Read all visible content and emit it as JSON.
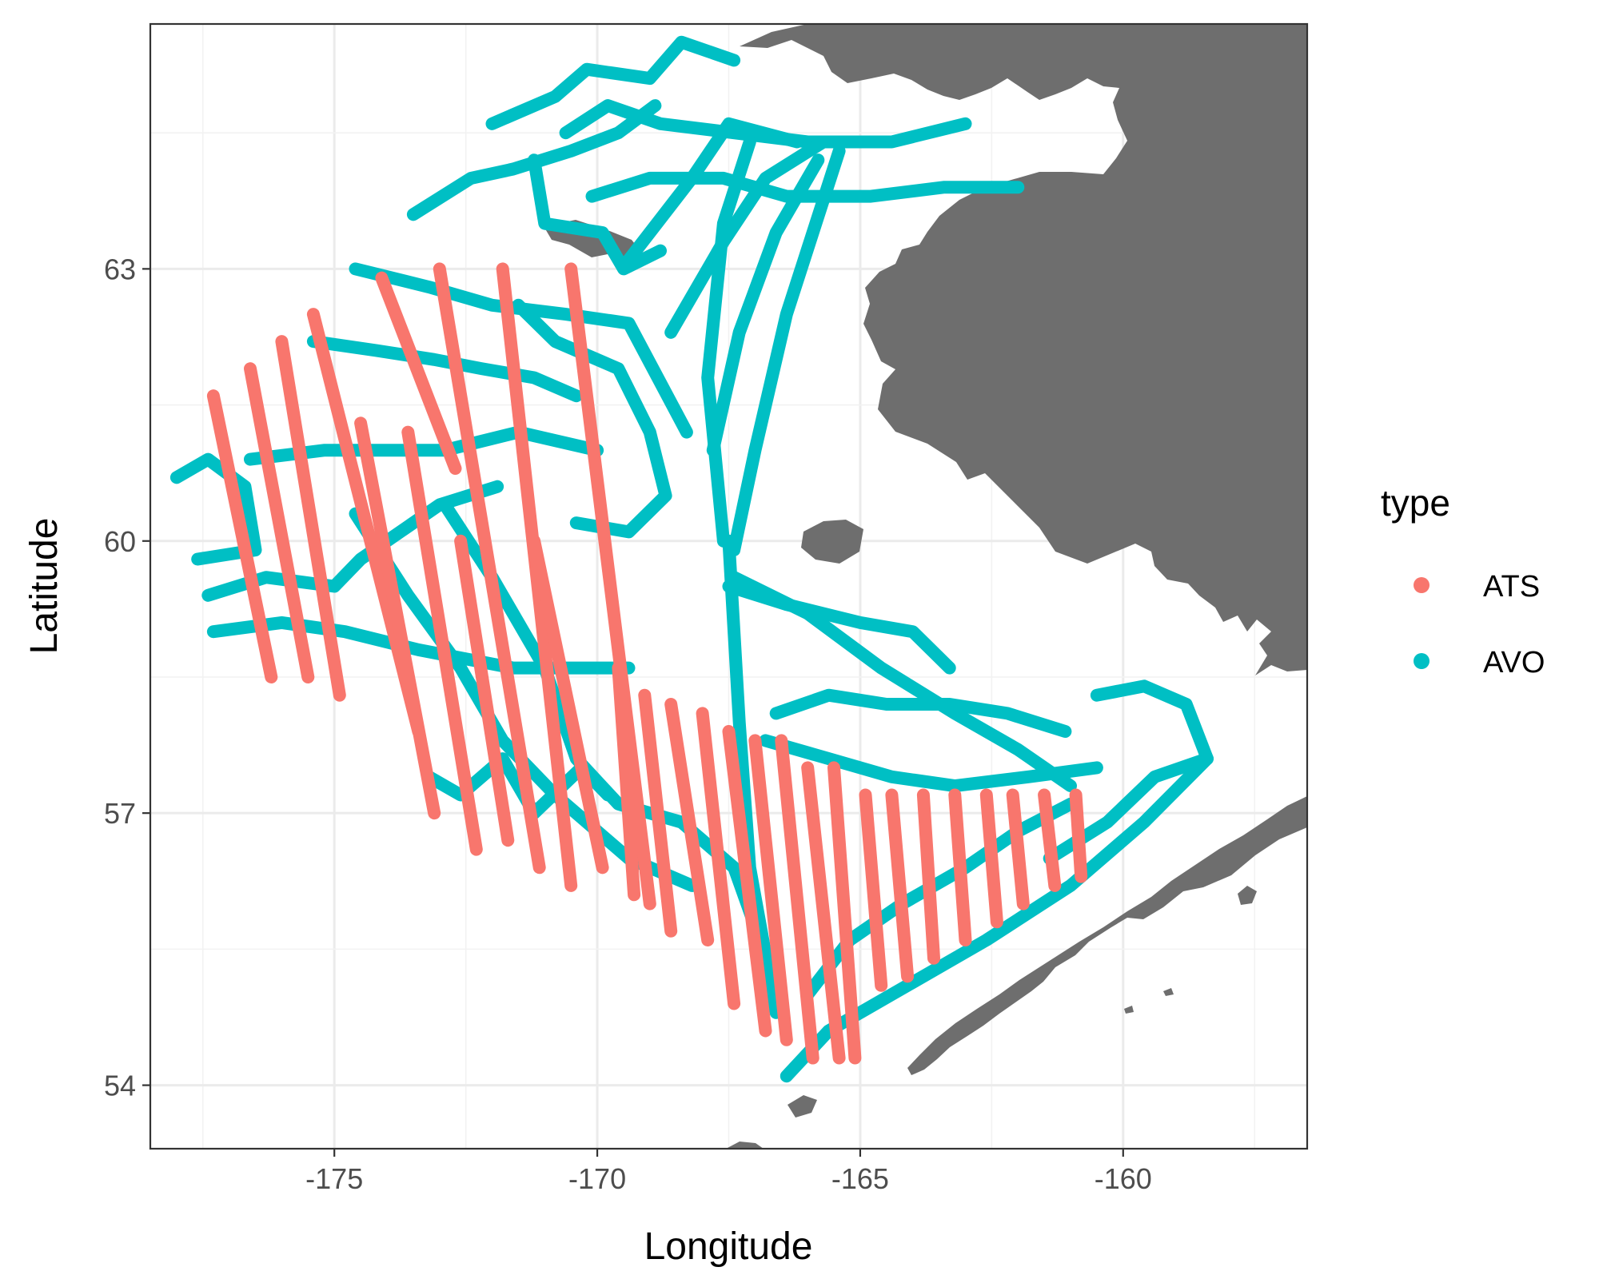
{
  "chart_data": {
    "type": "map",
    "title": "",
    "xlabel": "Longitude",
    "ylabel": "Latitude",
    "xlim": [
      -178.5,
      -156.5
    ],
    "ylim": [
      53.3,
      65.7
    ],
    "xticks": [
      -175,
      -170,
      -165,
      -160
    ],
    "yticks": [
      54,
      57,
      60,
      63
    ],
    "xtick_labels": [
      "-175",
      "-170",
      "-165",
      "-160"
    ],
    "ytick_labels": [
      "54",
      "57",
      "60",
      "63"
    ],
    "grid": true,
    "legend": {
      "title": "type",
      "position": "right",
      "entries": [
        {
          "label": "ATS",
          "color": "#F8766D"
        },
        {
          "label": "AVO",
          "color": "#00BFC4"
        }
      ]
    },
    "land_color": "#6e6e6e",
    "series": [
      {
        "name": "ATS",
        "color": "#F8766D",
        "transects": [
          [
            [
              -177.3,
              61.6
            ],
            [
              -176.2,
              58.5
            ]
          ],
          [
            [
              -176.6,
              61.9
            ],
            [
              -175.5,
              58.5
            ]
          ],
          [
            [
              -176.0,
              62.2
            ],
            [
              -174.9,
              58.3
            ]
          ],
          [
            [
              -175.4,
              62.5
            ],
            [
              -173.4,
              57.9
            ]
          ],
          [
            [
              -174.5,
              61.3
            ],
            [
              -173.1,
              57.0
            ]
          ],
          [
            [
              -174.1,
              62.9
            ],
            [
              -172.7,
              60.8
            ]
          ],
          [
            [
              -173.6,
              61.2
            ],
            [
              -172.3,
              56.6
            ]
          ],
          [
            [
              -173.0,
              63.0
            ],
            [
              -171.1,
              56.4
            ]
          ],
          [
            [
              -172.6,
              60.0
            ],
            [
              -171.7,
              56.7
            ]
          ],
          [
            [
              -171.8,
              63.0
            ],
            [
              -170.5,
              56.2
            ]
          ],
          [
            [
              -171.2,
              60.0
            ],
            [
              -169.9,
              56.4
            ]
          ],
          [
            [
              -170.5,
              63.0
            ],
            [
              -169.0,
              56.0
            ]
          ],
          [
            [
              -169.6,
              58.6
            ],
            [
              -169.3,
              56.1
            ]
          ],
          [
            [
              -169.1,
              58.3
            ],
            [
              -168.6,
              55.7
            ]
          ],
          [
            [
              -168.6,
              58.2
            ],
            [
              -167.9,
              55.6
            ]
          ],
          [
            [
              -168.0,
              58.1
            ],
            [
              -167.4,
              54.9
            ]
          ],
          [
            [
              -167.5,
              57.9
            ],
            [
              -166.8,
              54.6
            ]
          ],
          [
            [
              -167.0,
              57.8
            ],
            [
              -166.4,
              54.5
            ]
          ],
          [
            [
              -166.5,
              57.8
            ],
            [
              -165.9,
              54.3
            ]
          ],
          [
            [
              -166.0,
              57.5
            ],
            [
              -165.4,
              54.3
            ]
          ],
          [
            [
              -165.5,
              57.5
            ],
            [
              -165.1,
              54.3
            ]
          ],
          [
            [
              -164.9,
              57.2
            ],
            [
              -164.6,
              55.1
            ]
          ],
          [
            [
              -164.4,
              57.2
            ],
            [
              -164.1,
              55.2
            ]
          ],
          [
            [
              -163.8,
              57.2
            ],
            [
              -163.6,
              55.4
            ]
          ],
          [
            [
              -163.2,
              57.2
            ],
            [
              -163.0,
              55.6
            ]
          ],
          [
            [
              -162.6,
              57.2
            ],
            [
              -162.4,
              55.8
            ]
          ],
          [
            [
              -162.1,
              57.2
            ],
            [
              -161.9,
              56.0
            ]
          ],
          [
            [
              -161.5,
              57.2
            ],
            [
              -161.3,
              56.2
            ]
          ],
          [
            [
              -160.9,
              57.2
            ],
            [
              -160.8,
              56.3
            ]
          ]
        ]
      },
      {
        "name": "AVO",
        "color": "#00BFC4",
        "transects": [
          [
            [
              -178.0,
              60.7
            ],
            [
              -177.4,
              60.9
            ],
            [
              -176.7,
              60.6
            ],
            [
              -176.5,
              59.9
            ],
            [
              -177.6,
              59.8
            ]
          ],
          [
            [
              -177.3,
              59.0
            ],
            [
              -176.0,
              59.1
            ],
            [
              -174.8,
              59.0
            ],
            [
              -173.4,
              58.8
            ],
            [
              -171.6,
              58.6
            ],
            [
              -169.4,
              58.6
            ]
          ],
          [
            [
              -177.4,
              59.4
            ],
            [
              -176.3,
              59.6
            ],
            [
              -175.0,
              59.5
            ],
            [
              -174.5,
              59.8
            ],
            [
              -173.0,
              60.4
            ],
            [
              -171.9,
              60.6
            ]
          ],
          [
            [
              -176.6,
              60.9
            ],
            [
              -175.2,
              61.0
            ],
            [
              -173.8,
              61.0
            ],
            [
              -172.9,
              61.0
            ],
            [
              -171.5,
              61.2
            ],
            [
              -170.0,
              61.0
            ]
          ],
          [
            [
              -175.4,
              62.2
            ],
            [
              -174.2,
              62.1
            ],
            [
              -173.1,
              62.0
            ],
            [
              -172.2,
              61.9
            ],
            [
              -171.2,
              61.8
            ],
            [
              -170.4,
              61.6
            ]
          ],
          [
            [
              -174.6,
              63.0
            ],
            [
              -173.2,
              62.8
            ],
            [
              -172.0,
              62.6
            ],
            [
              -170.6,
              62.5
            ],
            [
              -169.4,
              62.4
            ],
            [
              -168.3,
              61.2
            ]
          ],
          [
            [
              -173.5,
              63.6
            ],
            [
              -172.4,
              64.0
            ],
            [
              -171.6,
              64.1
            ],
            [
              -170.5,
              64.3
            ],
            [
              -169.6,
              64.5
            ],
            [
              -168.9,
              64.8
            ]
          ],
          [
            [
              -172.0,
              64.6
            ],
            [
              -170.8,
              64.9
            ],
            [
              -170.2,
              65.2
            ],
            [
              -169.0,
              65.1
            ],
            [
              -168.4,
              65.5
            ],
            [
              -167.4,
              65.3
            ]
          ],
          [
            [
              -170.6,
              64.5
            ],
            [
              -169.8,
              64.8
            ],
            [
              -168.8,
              64.6
            ],
            [
              -167.4,
              64.5
            ],
            [
              -166.0,
              64.4
            ],
            [
              -164.4,
              64.4
            ],
            [
              -163.0,
              64.6
            ]
          ],
          [
            [
              -170.1,
              63.8
            ],
            [
              -169.0,
              64.0
            ],
            [
              -167.6,
              64.0
            ],
            [
              -166.4,
              63.8
            ],
            [
              -164.8,
              63.8
            ],
            [
              -163.4,
              63.9
            ],
            [
              -162.0,
              63.9
            ]
          ],
          [
            [
              -169.4,
              63.1
            ],
            [
              -168.2,
              64.0
            ],
            [
              -167.5,
              64.6
            ],
            [
              -166.2,
              64.4
            ]
          ],
          [
            [
              -168.6,
              62.3
            ],
            [
              -167.6,
              63.3
            ],
            [
              -166.8,
              64.0
            ],
            [
              -165.7,
              64.4
            ]
          ],
          [
            [
              -167.8,
              61.0
            ],
            [
              -167.3,
              62.3
            ],
            [
              -166.6,
              63.4
            ],
            [
              -165.8,
              64.2
            ]
          ],
          [
            [
              -167.4,
              59.9
            ],
            [
              -167.0,
              61.0
            ],
            [
              -166.4,
              62.5
            ],
            [
              -165.4,
              64.3
            ]
          ],
          [
            [
              -167.6,
              60.0
            ],
            [
              -167.9,
              61.8
            ],
            [
              -167.6,
              63.5
            ],
            [
              -167.1,
              64.4
            ]
          ],
          [
            [
              -167.5,
              60.0
            ],
            [
              -167.3,
              58.0
            ],
            [
              -167.1,
              56.4
            ],
            [
              -166.6,
              54.8
            ]
          ],
          [
            [
              -167.4,
              59.6
            ],
            [
              -166.0,
              59.2
            ],
            [
              -164.6,
              58.6
            ],
            [
              -163.2,
              58.1
            ],
            [
              -162.0,
              57.7
            ],
            [
              -161.0,
              57.3
            ]
          ],
          [
            [
              -167.5,
              59.5
            ],
            [
              -166.4,
              59.3
            ],
            [
              -165.0,
              59.1
            ],
            [
              -164.0,
              59.0
            ],
            [
              -163.3,
              58.6
            ]
          ],
          [
            [
              -166.6,
              58.1
            ],
            [
              -165.6,
              58.3
            ],
            [
              -164.5,
              58.2
            ],
            [
              -163.3,
              58.2
            ],
            [
              -162.2,
              58.1
            ],
            [
              -161.1,
              57.9
            ]
          ],
          [
            [
              -166.8,
              57.8
            ],
            [
              -165.6,
              57.6
            ],
            [
              -164.4,
              57.4
            ],
            [
              -163.2,
              57.3
            ],
            [
              -161.8,
              57.4
            ],
            [
              -160.5,
              57.5
            ]
          ],
          [
            [
              -160.5,
              58.3
            ],
            [
              -159.6,
              58.4
            ],
            [
              -158.8,
              58.2
            ],
            [
              -158.4,
              57.6
            ],
            [
              -159.4,
              57.4
            ],
            [
              -160.3,
              56.9
            ],
            [
              -161.4,
              56.5
            ]
          ],
          [
            [
              -158.4,
              57.6
            ],
            [
              -159.6,
              56.9
            ],
            [
              -161.0,
              56.2
            ],
            [
              -162.6,
              55.6
            ],
            [
              -164.4,
              55.0
            ],
            [
              -165.6,
              54.6
            ],
            [
              -166.4,
              54.1
            ]
          ],
          [
            [
              -172.9,
              60.4
            ],
            [
              -172.0,
              59.6
            ],
            [
              -171.0,
              58.6
            ],
            [
              -170.4,
              57.6
            ],
            [
              -169.6,
              57.1
            ],
            [
              -168.4,
              56.9
            ],
            [
              -167.4,
              56.4
            ],
            [
              -166.6,
              55.1
            ]
          ],
          [
            [
              -174.6,
              60.3
            ],
            [
              -173.6,
              59.4
            ],
            [
              -172.6,
              58.6
            ],
            [
              -171.8,
              57.8
            ],
            [
              -170.8,
              57.2
            ],
            [
              -169.4,
              56.5
            ],
            [
              -168.2,
              56.2
            ]
          ],
          [
            [
              -166.0,
              55.0
            ],
            [
              -165.2,
              55.6
            ],
            [
              -164.2,
              56.0
            ],
            [
              -163.0,
              56.4
            ],
            [
              -162.0,
              56.8
            ],
            [
              -161.0,
              57.1
            ]
          ],
          [
            [
              -169.8,
              57.2
            ],
            [
              -170.3,
              57.5
            ],
            [
              -171.2,
              57.0
            ],
            [
              -171.8,
              57.6
            ],
            [
              -172.6,
              57.2
            ],
            [
              -173.2,
              57.4
            ]
          ],
          [
            [
              -171.5,
              62.6
            ],
            [
              -170.8,
              62.2
            ],
            [
              -169.6,
              61.9
            ],
            [
              -169.0,
              61.2
            ],
            [
              -168.7,
              60.5
            ],
            [
              -169.4,
              60.1
            ],
            [
              -170.4,
              60.2
            ]
          ],
          [
            [
              -171.2,
              64.2
            ],
            [
              -171.0,
              63.5
            ],
            [
              -169.9,
              63.4
            ],
            [
              -169.5,
              63.0
            ],
            [
              -168.8,
              63.2
            ]
          ]
        ]
      }
    ]
  }
}
